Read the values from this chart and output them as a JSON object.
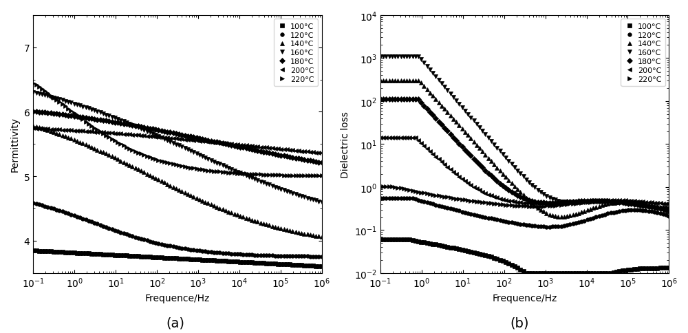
{
  "temperatures": [
    "100°C",
    "120°C",
    "140°C",
    "160°C",
    "180°C",
    "200°C",
    "220°C"
  ],
  "markers": [
    "s",
    "o",
    "^",
    "v",
    "D",
    "<",
    ">"
  ],
  "xlabel": "Frequence/Hz",
  "ylabel_a": "Permittivity",
  "ylabel_b": "Dielectric loss",
  "label_a": "(a)",
  "label_b": "(b)",
  "ylim_a": [
    3.5,
    7.5
  ],
  "markersize": 4,
  "background": "white"
}
